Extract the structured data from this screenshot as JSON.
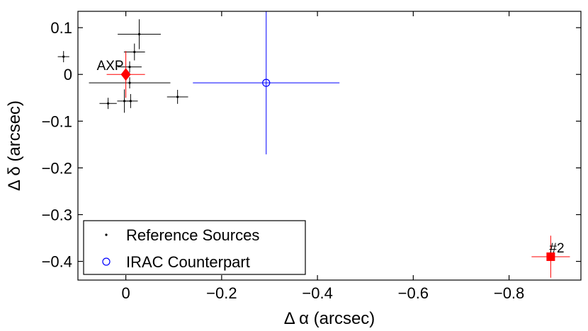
{
  "chart_data": {
    "type": "scatter",
    "xlabel": "Δ α (arcsec)",
    "ylabel": "Δ δ (arcsec)",
    "xlim": [
      0.1,
      -0.95
    ],
    "ylim": [
      -0.44,
      0.135
    ],
    "x_ticks": [
      0,
      -0.2,
      -0.4,
      -0.6,
      -0.8
    ],
    "x_tick_labels": [
      "0",
      "−0.2",
      "−0.4",
      "−0.6",
      "−0.8"
    ],
    "y_ticks": [
      0.1,
      0,
      -0.1,
      -0.2,
      -0.3,
      -0.4
    ],
    "y_tick_labels": [
      "0.1",
      "0",
      "−0.1",
      "−0.2",
      "−0.3",
      "−0.4"
    ],
    "grid": false,
    "legend_position": "bottom-left",
    "series": [
      {
        "name": "Reference Sources",
        "marker": "dot",
        "color": "#000000",
        "points": [
          {
            "x": 0.13,
            "y": 0.038,
            "xerr": 0.012,
            "yerr": 0.012
          },
          {
            "x": -0.028,
            "y": 0.086,
            "xerr": 0.045,
            "yerr": 0.032
          },
          {
            "x": -0.018,
            "y": 0.048,
            "xerr": 0.022,
            "yerr": 0.018
          },
          {
            "x": -0.008,
            "y": 0.016,
            "xerr": 0.025,
            "yerr": 0.012
          },
          {
            "x": -0.008,
            "y": -0.018,
            "xerr": 0.085,
            "yerr": 0.012
          },
          {
            "x": 0.037,
            "y": -0.062,
            "xerr": 0.018,
            "yerr": 0.012
          },
          {
            "x": 0.003,
            "y": -0.057,
            "xerr": 0.015,
            "yerr": 0.025
          },
          {
            "x": -0.01,
            "y": -0.057,
            "xerr": 0.015,
            "yerr": 0.015
          },
          {
            "x": -0.108,
            "y": -0.048,
            "xerr": 0.022,
            "yerr": 0.015
          }
        ]
      },
      {
        "name": "IRAC Counterpart",
        "marker": "circle",
        "color": "#0000ff",
        "points": [
          {
            "x": -0.293,
            "y": -0.018,
            "xerr": 0.153,
            "yerr": 0.153
          }
        ]
      }
    ],
    "extra_markers": [
      {
        "label": "AXP",
        "marker": "diamond",
        "color": "#ff0000",
        "x": 0.0,
        "y": 0.0,
        "xerr": 0.04,
        "yerr": 0.05
      },
      {
        "label": "#2",
        "marker": "square",
        "color": "#ff0000",
        "x": -0.887,
        "y": -0.39,
        "xerr": 0.04,
        "yerr": 0.045
      }
    ]
  }
}
